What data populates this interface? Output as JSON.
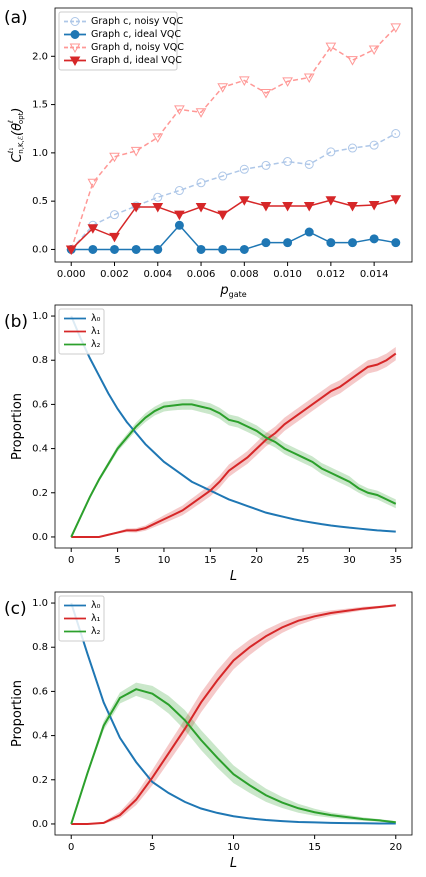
{
  "chart_data": [
    {
      "type": "line",
      "panel_label": "(a)",
      "xlabel": [
        "p",
        "gate"
      ],
      "ylabel": [
        "C",
        "ℓ₁",
        "n,K,ℰ",
        "(θ",
        "ℓ",
        "opt",
        ")"
      ],
      "x": [
        0,
        0.001,
        0.002,
        0.003,
        0.004,
        0.005,
        0.006,
        0.007,
        0.008,
        0.009,
        0.01,
        0.011,
        0.012,
        0.013,
        0.014,
        0.015
      ],
      "xlim": [
        -0.00075,
        0.01575
      ],
      "xticks": [
        {
          "value": 0,
          "label": "0.000"
        },
        {
          "value": 0.002,
          "label": "0.002"
        },
        {
          "value": 0.004,
          "label": "0.004"
        },
        {
          "value": 0.006,
          "label": "0.006"
        },
        {
          "value": 0.008,
          "label": "0.008"
        },
        {
          "value": 0.01,
          "label": "0.010"
        },
        {
          "value": 0.012,
          "label": "0.012"
        },
        {
          "value": 0.014,
          "label": "0.014"
        }
      ],
      "ylim": [
        -0.13,
        2.5
      ],
      "yticks": [
        {
          "value": 0,
          "label": "0.0"
        },
        0.5,
        {
          "value": 1,
          "label": "1.0"
        },
        1.5,
        {
          "value": 2,
          "label": "2.0"
        }
      ],
      "legend": "upper left",
      "series": [
        {
          "name": "Graph c, noisy VQC",
          "color": "#aec7e8",
          "linestyle": "dashed",
          "marker": "circle",
          "filled": false,
          "values": [
            0,
            0.25,
            0.36,
            0.45,
            0.54,
            0.61,
            0.69,
            0.76,
            0.83,
            0.87,
            0.91,
            0.88,
            1.01,
            1.05,
            1.08,
            1.2
          ]
        },
        {
          "name": "Graph c, ideal VQC",
          "color": "#1f77b4",
          "linestyle": "solid",
          "marker": "circle",
          "filled": true,
          "values": [
            0,
            0,
            0,
            0,
            0,
            0.25,
            0,
            0,
            0,
            0.07,
            0.07,
            0.18,
            0.07,
            0.07,
            0.11,
            0.07
          ]
        },
        {
          "name": "Graph d, noisy VQC",
          "color": "#ff9896",
          "linestyle": "dashed",
          "marker": "triangle-down",
          "filled": false,
          "values": [
            0,
            0.69,
            0.96,
            1.02,
            1.16,
            1.45,
            1.42,
            1.68,
            1.75,
            1.62,
            1.74,
            1.78,
            2.1,
            1.96,
            2.07,
            2.3
          ]
        },
        {
          "name": "Graph d, ideal VQC",
          "color": "#d62728",
          "linestyle": "solid",
          "marker": "triangle-down",
          "filled": true,
          "values": [
            0,
            0.22,
            0.13,
            0.44,
            0.44,
            0.36,
            0.44,
            0.36,
            0.51,
            0.45,
            0.45,
            0.45,
            0.51,
            0.45,
            0.46,
            0.52
          ]
        }
      ]
    },
    {
      "type": "line",
      "panel_label": "(b)",
      "xlabel": [
        "L"
      ],
      "ylabel": [
        "Proportion"
      ],
      "x": [
        0,
        1,
        2,
        3,
        4,
        5,
        6,
        7,
        8,
        9,
        10,
        11,
        12,
        13,
        14,
        15,
        16,
        17,
        18,
        19,
        20,
        21,
        22,
        23,
        24,
        25,
        26,
        27,
        28,
        29,
        30,
        31,
        32,
        33,
        34,
        35
      ],
      "xlim": [
        -1.75,
        36.75
      ],
      "xticks": [
        0,
        5,
        10,
        15,
        20,
        25,
        30,
        35
      ],
      "ylim": [
        -0.05,
        1.05
      ],
      "yticks": [
        {
          "value": 0,
          "label": "0.0"
        },
        0.2,
        0.4,
        0.6,
        0.8,
        {
          "value": 1,
          "label": "1.0"
        }
      ],
      "legend": "upper left",
      "series": [
        {
          "name": "λ₀",
          "color": "#1f77b4",
          "linestyle": "solid",
          "values": [
            1.0,
            0.9,
            0.81,
            0.73,
            0.65,
            0.58,
            0.52,
            0.47,
            0.42,
            0.38,
            0.34,
            0.31,
            0.28,
            0.25,
            0.23,
            0.21,
            0.19,
            0.17,
            0.155,
            0.14,
            0.125,
            0.11,
            0.1,
            0.09,
            0.08,
            0.072,
            0.065,
            0.058,
            0.052,
            0.047,
            0.042,
            0.038,
            0.034,
            0.03,
            0.027,
            0.024
          ]
        },
        {
          "name": "λ₁",
          "color": "#d62728",
          "linestyle": "solid",
          "values": [
            0,
            0,
            0,
            0,
            0.01,
            0.02,
            0.03,
            0.03,
            0.04,
            0.06,
            0.08,
            0.1,
            0.12,
            0.15,
            0.18,
            0.21,
            0.25,
            0.3,
            0.33,
            0.36,
            0.4,
            0.44,
            0.47,
            0.51,
            0.54,
            0.57,
            0.6,
            0.63,
            0.66,
            0.68,
            0.71,
            0.74,
            0.77,
            0.78,
            0.8,
            0.83
          ],
          "errors": [
            0,
            0,
            0,
            0,
            0.003,
            0.005,
            0.008,
            0.01,
            0.012,
            0.015,
            0.018,
            0.02,
            0.022,
            0.024,
            0.025,
            0.026,
            0.027,
            0.028,
            0.028,
            0.029,
            0.03,
            0.03,
            0.03,
            0.03,
            0.03,
            0.03,
            0.03,
            0.03,
            0.03,
            0.03,
            0.03,
            0.03,
            0.03,
            0.03,
            0.03,
            0.03
          ]
        },
        {
          "name": "λ₂",
          "color": "#2ca02c",
          "linestyle": "solid",
          "values": [
            0,
            0.09,
            0.18,
            0.26,
            0.33,
            0.4,
            0.45,
            0.5,
            0.54,
            0.57,
            0.59,
            0.595,
            0.6,
            0.6,
            0.59,
            0.58,
            0.56,
            0.53,
            0.52,
            0.5,
            0.48,
            0.45,
            0.43,
            0.4,
            0.38,
            0.36,
            0.34,
            0.31,
            0.29,
            0.27,
            0.25,
            0.22,
            0.2,
            0.19,
            0.17,
            0.15
          ],
          "errors": [
            0,
            0.004,
            0.008,
            0.01,
            0.012,
            0.014,
            0.016,
            0.018,
            0.02,
            0.02,
            0.022,
            0.022,
            0.024,
            0.024,
            0.025,
            0.025,
            0.025,
            0.025,
            0.025,
            0.025,
            0.025,
            0.025,
            0.025,
            0.025,
            0.025,
            0.025,
            0.025,
            0.025,
            0.025,
            0.025,
            0.025,
            0.02,
            0.02,
            0.02,
            0.02,
            0.02
          ]
        }
      ]
    },
    {
      "type": "line",
      "panel_label": "(c)",
      "xlabel": [
        "L"
      ],
      "ylabel": [
        "Proportion"
      ],
      "x": [
        0,
        1,
        2,
        3,
        4,
        5,
        6,
        7,
        8,
        9,
        10,
        11,
        12,
        13,
        14,
        15,
        16,
        17,
        18,
        19,
        20
      ],
      "xlim": [
        -1,
        21
      ],
      "xticks": [
        0,
        5,
        10,
        15,
        20
      ],
      "ylim": [
        -0.05,
        1.05
      ],
      "yticks": [
        {
          "value": 0,
          "label": "0.0"
        },
        0.2,
        0.4,
        0.6,
        0.8,
        {
          "value": 1,
          "label": "1.0"
        }
      ],
      "legend": "upper left",
      "series": [
        {
          "name": "λ₀",
          "color": "#1f77b4",
          "linestyle": "solid",
          "values": [
            1.0,
            0.77,
            0.55,
            0.39,
            0.28,
            0.19,
            0.14,
            0.1,
            0.07,
            0.05,
            0.035,
            0.025,
            0.018,
            0.013,
            0.009,
            0.007,
            0.005,
            0.004,
            0.003,
            0.002,
            0.002
          ]
        },
        {
          "name": "λ₁",
          "color": "#d62728",
          "linestyle": "solid",
          "values": [
            0,
            0,
            0.005,
            0.04,
            0.11,
            0.21,
            0.32,
            0.43,
            0.55,
            0.65,
            0.74,
            0.8,
            0.85,
            0.89,
            0.92,
            0.94,
            0.955,
            0.965,
            0.975,
            0.982,
            0.99
          ],
          "errors": [
            0,
            0,
            0.005,
            0.015,
            0.025,
            0.035,
            0.04,
            0.045,
            0.045,
            0.045,
            0.04,
            0.035,
            0.03,
            0.025,
            0.02,
            0.015,
            0.012,
            0.01,
            0.008,
            0.006,
            0.005
          ]
        },
        {
          "name": "λ₂",
          "color": "#2ca02c",
          "linestyle": "solid",
          "values": [
            0,
            0.23,
            0.445,
            0.57,
            0.61,
            0.59,
            0.54,
            0.47,
            0.38,
            0.3,
            0.225,
            0.175,
            0.13,
            0.097,
            0.071,
            0.053,
            0.04,
            0.031,
            0.022,
            0.016,
            0.008
          ],
          "errors": [
            0,
            0.01,
            0.02,
            0.025,
            0.03,
            0.035,
            0.04,
            0.045,
            0.045,
            0.045,
            0.04,
            0.035,
            0.03,
            0.025,
            0.02,
            0.016,
            0.012,
            0.01,
            0.008,
            0.006,
            0.005
          ]
        }
      ]
    }
  ]
}
